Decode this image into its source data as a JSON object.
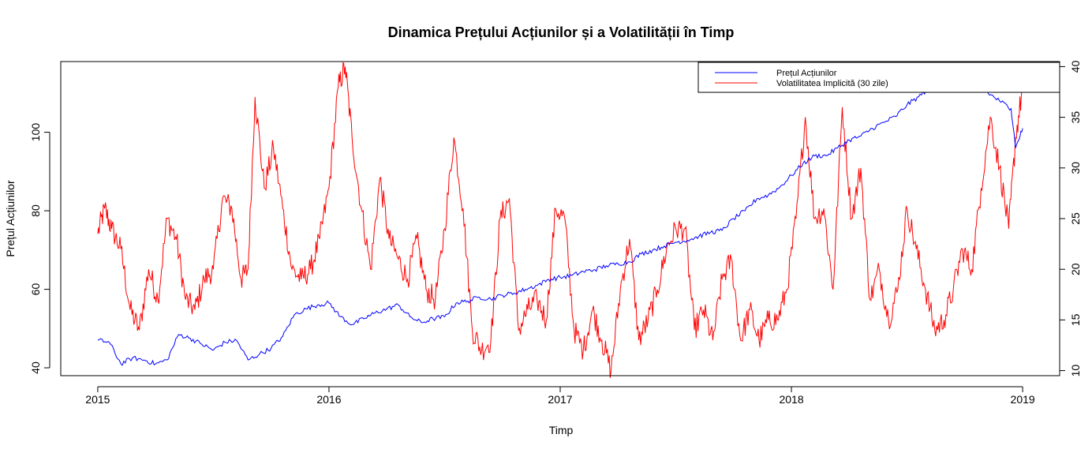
{
  "chart_data": {
    "type": "line",
    "title": "Dinamica Prețului Acțiunilor și a Volatilității în Timp",
    "xlabel": "Timp",
    "ylabel": "Prețul Acțiunilor",
    "y2label": "",
    "xlim": [
      2014.84,
      2019.16
    ],
    "ylim": [
      38.0,
      118.0
    ],
    "y2lim": [
      9.5,
      40.5
    ],
    "x_ticks": [
      "2015",
      "2016",
      "2017",
      "2018",
      "2019"
    ],
    "y_ticks": [
      "40",
      "60",
      "80",
      "100"
    ],
    "y2_ticks": [
      "10",
      "15",
      "20",
      "25",
      "30",
      "35",
      "40"
    ],
    "legend_position": "top-right",
    "grid": false,
    "colors": {
      "price": "#0000ff",
      "volatility": "#ff0000"
    },
    "series": [
      {
        "name": "Prețul Acțiunilor",
        "axis": "left",
        "color": "#0000ff",
        "x": [
          2015.0,
          2015.05,
          2015.1,
          2015.15,
          2015.2,
          2015.25,
          2015.3,
          2015.35,
          2015.4,
          2015.45,
          2015.5,
          2015.55,
          2015.6,
          2015.65,
          2015.7,
          2015.75,
          2015.8,
          2015.85,
          2015.9,
          2015.95,
          2016.0,
          2016.05,
          2016.1,
          2016.15,
          2016.2,
          2016.25,
          2016.3,
          2016.35,
          2016.4,
          2016.45,
          2016.5,
          2016.55,
          2016.6,
          2016.65,
          2016.7,
          2016.75,
          2016.8,
          2016.85,
          2016.9,
          2016.95,
          2017.0,
          2017.05,
          2017.1,
          2017.15,
          2017.2,
          2017.25,
          2017.3,
          2017.35,
          2017.4,
          2017.45,
          2017.5,
          2017.55,
          2017.6,
          2017.65,
          2017.7,
          2017.75,
          2017.8,
          2017.85,
          2017.9,
          2017.95,
          2018.0,
          2018.05,
          2018.1,
          2018.15,
          2018.2,
          2018.25,
          2018.3,
          2018.35,
          2018.4,
          2018.45,
          2018.5,
          2018.55,
          2018.6,
          2018.65,
          2018.7,
          2018.75,
          2018.8,
          2018.85,
          2018.9,
          2018.95,
          2018.97,
          2019.0
        ],
        "values": [
          47,
          46.5,
          41,
          42.5,
          42,
          41,
          42,
          48.5,
          47.5,
          46,
          44.5,
          46.5,
          47,
          42,
          43.5,
          45,
          48,
          53.5,
          55,
          56,
          56.5,
          53,
          51,
          52.5,
          54,
          55,
          56,
          53,
          51.5,
          52.5,
          53,
          56.5,
          57,
          58,
          57.5,
          58.5,
          59,
          60,
          61,
          62.5,
          63,
          63.5,
          64.5,
          65,
          66,
          66.5,
          67,
          69,
          70,
          71,
          72,
          72.5,
          73.5,
          74.5,
          75,
          78,
          80,
          83,
          84,
          86,
          89,
          92,
          94,
          94,
          96,
          98,
          99,
          101,
          102.5,
          104,
          107,
          109,
          111.5,
          112.5,
          114,
          114,
          113,
          110,
          108,
          106,
          96,
          101
        ]
      },
      {
        "name": "Volatilitatea Implicită (30 zile)",
        "axis": "right",
        "color": "#ff0000",
        "x": [
          2015.0,
          2015.03,
          2015.06,
          2015.1,
          2015.14,
          2015.18,
          2015.22,
          2015.26,
          2015.3,
          2015.34,
          2015.38,
          2015.42,
          2015.46,
          2015.5,
          2015.54,
          2015.58,
          2015.62,
          2015.65,
          2015.68,
          2015.72,
          2015.76,
          2015.8,
          2015.84,
          2015.88,
          2015.92,
          2015.96,
          2016.0,
          2016.04,
          2016.07,
          2016.1,
          2016.14,
          2016.18,
          2016.22,
          2016.26,
          2016.3,
          2016.34,
          2016.38,
          2016.42,
          2016.46,
          2016.5,
          2016.54,
          2016.58,
          2016.62,
          2016.66,
          2016.7,
          2016.74,
          2016.78,
          2016.82,
          2016.86,
          2016.9,
          2016.94,
          2016.98,
          2017.02,
          2017.06,
          2017.1,
          2017.14,
          2017.18,
          2017.22,
          2017.26,
          2017.3,
          2017.34,
          2017.38,
          2017.42,
          2017.46,
          2017.5,
          2017.54,
          2017.58,
          2017.62,
          2017.66,
          2017.7,
          2017.74,
          2017.78,
          2017.82,
          2017.86,
          2017.9,
          2017.94,
          2017.98,
          2018.02,
          2018.06,
          2018.1,
          2018.14,
          2018.18,
          2018.22,
          2018.26,
          2018.3,
          2018.34,
          2018.38,
          2018.42,
          2018.46,
          2018.5,
          2018.54,
          2018.58,
          2018.62,
          2018.66,
          2018.7,
          2018.74,
          2018.78,
          2018.82,
          2018.86,
          2018.9,
          2018.94,
          2018.97,
          2019.0
        ],
        "values": [
          23.5,
          26,
          24,
          22,
          16,
          14,
          20,
          17,
          25,
          23,
          17,
          16,
          19,
          20,
          27,
          26,
          19,
          20,
          37,
          28,
          32,
          26,
          20,
          19,
          20,
          23,
          28,
          38,
          40,
          33,
          26,
          20,
          29,
          23,
          21,
          19,
          23,
          18,
          17,
          24,
          33,
          26,
          14,
          12,
          13,
          25,
          27,
          14,
          16,
          17,
          15,
          26,
          25,
          14,
          12,
          16,
          13,
          10,
          18,
          23,
          13,
          15,
          18,
          22,
          24,
          24,
          14,
          16,
          13,
          19,
          21,
          13,
          16,
          13,
          15,
          15,
          18,
          25,
          35,
          25,
          26,
          18,
          36,
          25,
          30,
          17,
          20,
          15,
          18,
          26,
          22,
          18,
          14,
          15,
          18,
          22,
          20,
          28,
          35,
          30,
          24,
          33,
          38
        ]
      }
    ]
  }
}
